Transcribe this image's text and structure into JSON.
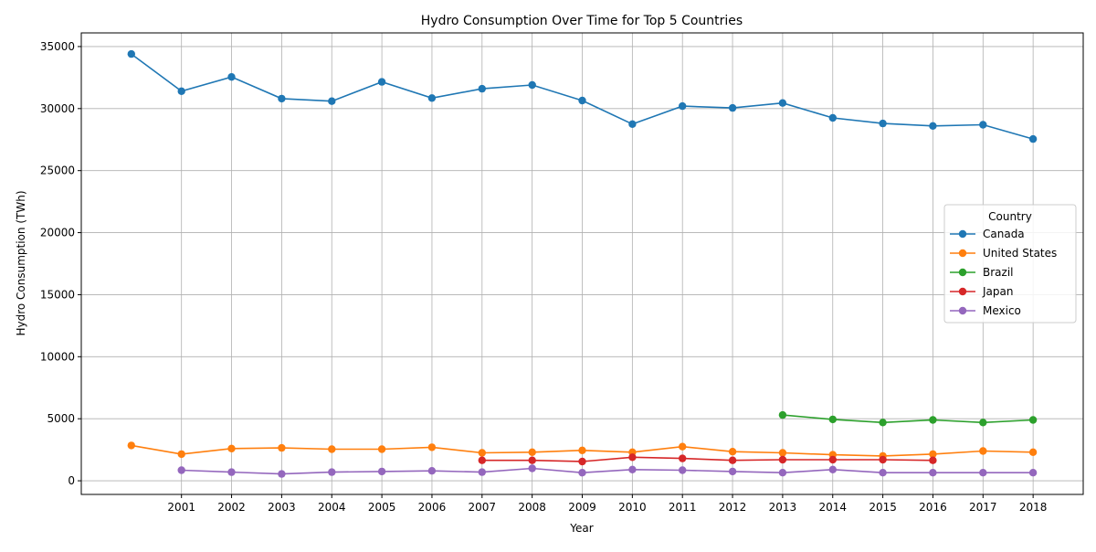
{
  "chart_data": {
    "type": "line",
    "title": "Hydro Consumption Over Time for Top 5 Countries",
    "xlabel": "Year",
    "ylabel": "Hydro Consumption (TWh)",
    "xlim": [
      1999,
      2019
    ],
    "ylim": [
      -1100,
      36100
    ],
    "x_ticks": [
      2001,
      2002,
      2003,
      2004,
      2005,
      2006,
      2007,
      2008,
      2009,
      2010,
      2011,
      2012,
      2013,
      2014,
      2015,
      2016,
      2017,
      2018
    ],
    "y_ticks": [
      0,
      5000,
      10000,
      15000,
      20000,
      25000,
      30000,
      35000
    ],
    "grid": true,
    "legend": {
      "title": "Country",
      "position": "center-right"
    },
    "series": [
      {
        "name": "Canada",
        "color": "#1f77b4",
        "points": [
          [
            2000,
            34400
          ],
          [
            2001,
            31400
          ],
          [
            2002,
            32550
          ],
          [
            2003,
            30800
          ],
          [
            2004,
            30600
          ],
          [
            2005,
            32150
          ],
          [
            2006,
            30850
          ],
          [
            2007,
            31600
          ],
          [
            2008,
            31900
          ],
          [
            2009,
            30650
          ],
          [
            2010,
            28750
          ],
          [
            2011,
            30200
          ],
          [
            2012,
            30050
          ],
          [
            2013,
            30450
          ],
          [
            2014,
            29250
          ],
          [
            2015,
            28800
          ],
          [
            2016,
            28600
          ],
          [
            2017,
            28700
          ],
          [
            2018,
            27550
          ]
        ]
      },
      {
        "name": "United States",
        "color": "#ff7f0e",
        "points": [
          [
            2000,
            2850
          ],
          [
            2001,
            2150
          ],
          [
            2002,
            2600
          ],
          [
            2003,
            2650
          ],
          [
            2004,
            2550
          ],
          [
            2005,
            2550
          ],
          [
            2006,
            2700
          ],
          [
            2007,
            2250
          ],
          [
            2008,
            2300
          ],
          [
            2009,
            2450
          ],
          [
            2010,
            2300
          ],
          [
            2011,
            2750
          ],
          [
            2012,
            2350
          ],
          [
            2013,
            2250
          ],
          [
            2014,
            2100
          ],
          [
            2015,
            2000
          ],
          [
            2016,
            2150
          ],
          [
            2017,
            2400
          ],
          [
            2018,
            2300
          ]
        ]
      },
      {
        "name": "Brazil",
        "color": "#2ca02c",
        "points": [
          [
            2013,
            5300
          ],
          [
            2014,
            4950
          ],
          [
            2015,
            4700
          ],
          [
            2016,
            4900
          ],
          [
            2017,
            4700
          ],
          [
            2018,
            4900
          ]
        ]
      },
      {
        "name": "Japan",
        "color": "#d62728",
        "points": [
          [
            2007,
            1650
          ],
          [
            2008,
            1650
          ],
          [
            2009,
            1550
          ],
          [
            2010,
            1900
          ],
          [
            2011,
            1800
          ],
          [
            2012,
            1650
          ],
          [
            2013,
            1700
          ],
          [
            2014,
            1700
          ],
          [
            2015,
            1700
          ],
          [
            2016,
            1650
          ]
        ]
      },
      {
        "name": "Mexico",
        "color": "#9467bd",
        "points": [
          [
            2001,
            850
          ],
          [
            2002,
            700
          ],
          [
            2003,
            550
          ],
          [
            2004,
            700
          ],
          [
            2005,
            750
          ],
          [
            2006,
            800
          ],
          [
            2007,
            700
          ],
          [
            2008,
            1000
          ],
          [
            2009,
            650
          ],
          [
            2010,
            900
          ],
          [
            2011,
            850
          ],
          [
            2012,
            750
          ],
          [
            2013,
            650
          ],
          [
            2014,
            900
          ],
          [
            2015,
            650
          ],
          [
            2016,
            650
          ],
          [
            2017,
            650
          ],
          [
            2018,
            650
          ]
        ]
      }
    ]
  }
}
